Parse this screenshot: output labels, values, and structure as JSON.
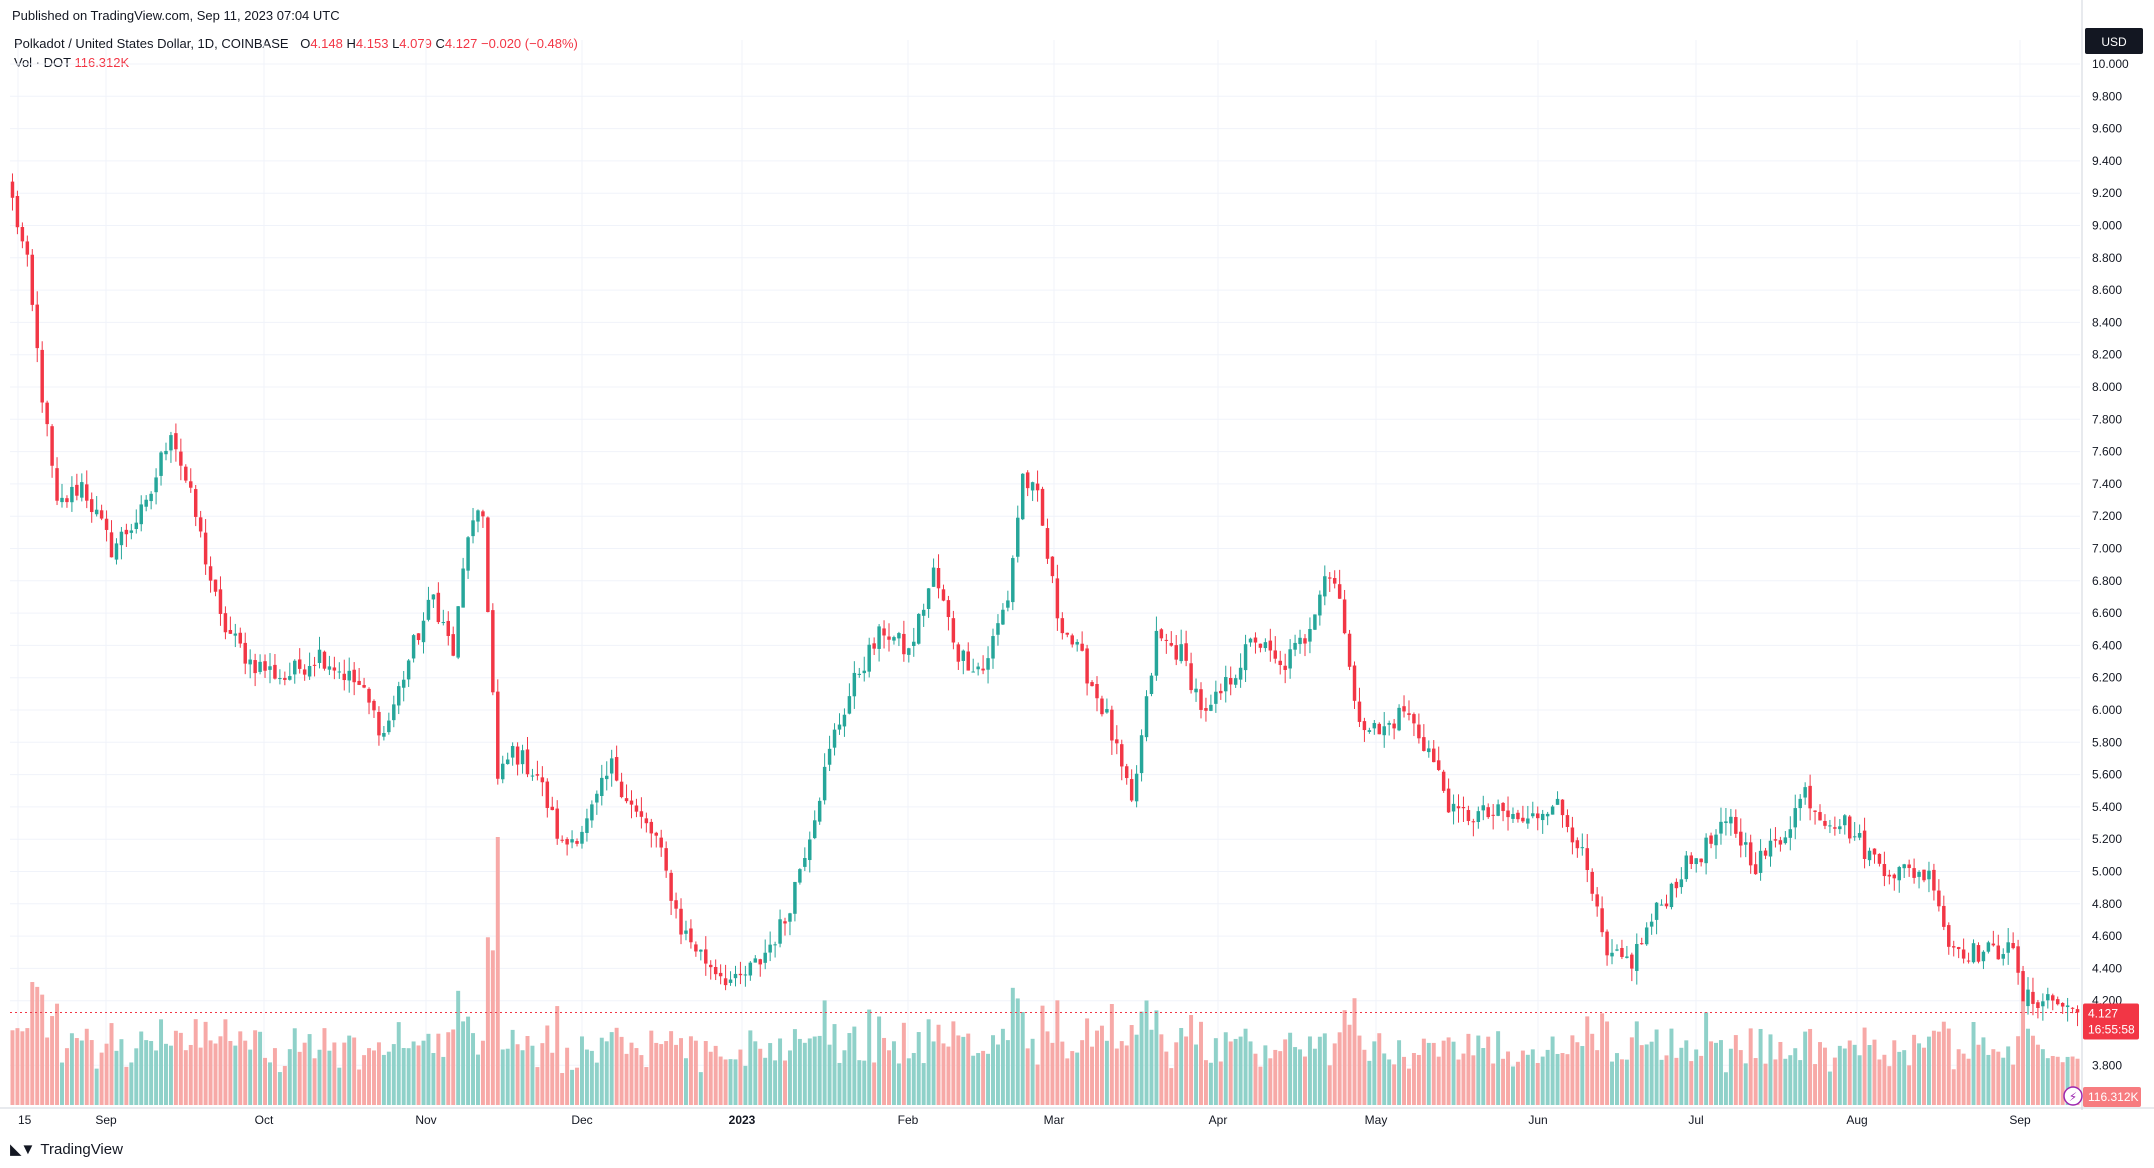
{
  "published": "Published on TradingView.com, Sep 11, 2023 07:04 UTC",
  "legend": {
    "symbol": "Polkadot / United States Dollar, 1D, COINBASE",
    "o_label": "O",
    "o": "4.148",
    "h_label": "H",
    "h": "4.153",
    "l_label": "L",
    "l": "4.079",
    "c_label": "C",
    "c": "4.127",
    "change": "−0.020 (−0.48%)",
    "vol_label": "Vol · DOT",
    "vol": "116.312K"
  },
  "brand": "TradingView",
  "colors": {
    "up": "#26a69a",
    "down": "#f23645",
    "vol_up": "#8fd1c9",
    "vol_down": "#f7a9a7",
    "grid": "#f0f3fa"
  },
  "chart_data": {
    "type": "candlestick",
    "currency_label": "USD",
    "y_ticks": [
      "10.000",
      "9.800",
      "9.600",
      "9.400",
      "9.200",
      "9.000",
      "8.800",
      "8.600",
      "8.400",
      "8.200",
      "8.000",
      "7.800",
      "7.600",
      "7.400",
      "7.200",
      "7.000",
      "6.800",
      "6.600",
      "6.400",
      "6.200",
      "6.000",
      "5.800",
      "5.600",
      "5.400",
      "5.200",
      "5.000",
      "4.800",
      "4.600",
      "4.400",
      "4.200",
      "3.800"
    ],
    "x_ticks": [
      "15",
      "Sep",
      "Oct",
      "Nov",
      "Dec",
      "2023",
      "Feb",
      "Mar",
      "Apr",
      "May",
      "Jun",
      "Jul",
      "Aug",
      "Sep"
    ],
    "last_price_label": "4.127",
    "countdown_label": "16:55:58",
    "last_volume_label": "116.312K",
    "ylim": [
      3.7,
      10.0
    ],
    "anchors": [
      {
        "d": 0,
        "p": 9.15
      },
      {
        "d": 3,
        "p": 8.75
      },
      {
        "d": 6,
        "p": 7.95
      },
      {
        "d": 9,
        "p": 7.25
      },
      {
        "d": 14,
        "p": 7.4
      },
      {
        "d": 20,
        "p": 7.0
      },
      {
        "d": 27,
        "p": 7.25
      },
      {
        "d": 32,
        "p": 7.75
      },
      {
        "d": 37,
        "p": 7.2
      },
      {
        "d": 42,
        "p": 6.55
      },
      {
        "d": 48,
        "p": 6.3
      },
      {
        "d": 55,
        "p": 6.2
      },
      {
        "d": 62,
        "p": 6.35
      },
      {
        "d": 70,
        "p": 6.15
      },
      {
        "d": 75,
        "p": 5.85
      },
      {
        "d": 81,
        "p": 6.4
      },
      {
        "d": 85,
        "p": 6.7
      },
      {
        "d": 89,
        "p": 6.35
      },
      {
        "d": 92,
        "p": 7.1
      },
      {
        "d": 95,
        "p": 7.2
      },
      {
        "d": 98,
        "p": 5.55
      },
      {
        "d": 101,
        "p": 5.75
      },
      {
        "d": 106,
        "p": 5.6
      },
      {
        "d": 111,
        "p": 5.15
      },
      {
        "d": 116,
        "p": 5.3
      },
      {
        "d": 121,
        "p": 5.65
      },
      {
        "d": 126,
        "p": 5.35
      },
      {
        "d": 130,
        "p": 5.2
      },
      {
        "d": 135,
        "p": 4.65
      },
      {
        "d": 140,
        "p": 4.45
      },
      {
        "d": 146,
        "p": 4.3
      },
      {
        "d": 151,
        "p": 4.45
      },
      {
        "d": 156,
        "p": 4.7
      },
      {
        "d": 161,
        "p": 5.25
      },
      {
        "d": 166,
        "p": 5.85
      },
      {
        "d": 171,
        "p": 6.25
      },
      {
        "d": 176,
        "p": 6.5
      },
      {
        "d": 181,
        "p": 6.35
      },
      {
        "d": 186,
        "p": 6.85
      },
      {
        "d": 191,
        "p": 6.35
      },
      {
        "d": 196,
        "p": 6.25
      },
      {
        "d": 201,
        "p": 6.7
      },
      {
        "d": 204,
        "p": 7.45
      },
      {
        "d": 207,
        "p": 7.3
      },
      {
        "d": 211,
        "p": 6.6
      },
      {
        "d": 216,
        "p": 6.3
      },
      {
        "d": 221,
        "p": 5.95
      },
      {
        "d": 226,
        "p": 5.4
      },
      {
        "d": 231,
        "p": 6.45
      },
      {
        "d": 236,
        "p": 6.35
      },
      {
        "d": 241,
        "p": 5.95
      },
      {
        "d": 246,
        "p": 6.2
      },
      {
        "d": 251,
        "p": 6.45
      },
      {
        "d": 256,
        "p": 6.25
      },
      {
        "d": 261,
        "p": 6.45
      },
      {
        "d": 265,
        "p": 6.85
      },
      {
        "d": 268,
        "p": 6.75
      },
      {
        "d": 271,
        "p": 6.0
      },
      {
        "d": 276,
        "p": 5.85
      },
      {
        "d": 281,
        "p": 6.0
      },
      {
        "d": 286,
        "p": 5.75
      },
      {
        "d": 291,
        "p": 5.35
      },
      {
        "d": 296,
        "p": 5.35
      },
      {
        "d": 301,
        "p": 5.35
      },
      {
        "d": 306,
        "p": 5.3
      },
      {
        "d": 311,
        "p": 5.45
      },
      {
        "d": 316,
        "p": 5.2
      },
      {
        "d": 319,
        "p": 4.85
      },
      {
        "d": 322,
        "p": 4.45
      },
      {
        "d": 327,
        "p": 4.45
      },
      {
        "d": 332,
        "p": 4.75
      },
      {
        "d": 337,
        "p": 5.0
      },
      {
        "d": 342,
        "p": 5.15
      },
      {
        "d": 347,
        "p": 5.3
      },
      {
        "d": 352,
        "p": 5.05
      },
      {
        "d": 357,
        "p": 5.2
      },
      {
        "d": 362,
        "p": 5.5
      },
      {
        "d": 365,
        "p": 5.35
      },
      {
        "d": 370,
        "p": 5.3
      },
      {
        "d": 375,
        "p": 5.1
      },
      {
        "d": 380,
        "p": 5.0
      },
      {
        "d": 385,
        "p": 5.0
      },
      {
        "d": 388,
        "p": 4.95
      },
      {
        "d": 391,
        "p": 4.55
      },
      {
        "d": 396,
        "p": 4.5
      },
      {
        "d": 401,
        "p": 4.5
      },
      {
        "d": 403,
        "p": 4.6
      },
      {
        "d": 406,
        "p": 4.2
      },
      {
        "d": 411,
        "p": 4.22
      },
      {
        "d": 415,
        "p": 4.15
      }
    ],
    "day_count": 418
  }
}
